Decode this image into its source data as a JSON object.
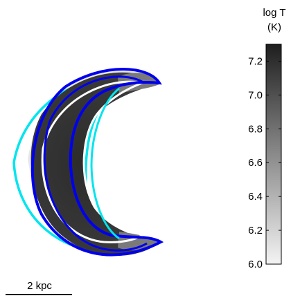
{
  "figure": {
    "colorbar": {
      "title_line1": "log T",
      "title_line2": "(K)",
      "ticks": [
        "7.2",
        "7.0",
        "6.8",
        "6.6",
        "6.4",
        "6.2",
        "6.0"
      ],
      "tick_values": [
        7.2,
        7.0,
        6.8,
        6.6,
        6.4,
        6.2,
        6.0
      ],
      "range": [
        6.0,
        7.3
      ],
      "colormap": [
        "#f4f4f4",
        "#1e1e1e"
      ]
    },
    "scale_bar": {
      "label": "2 kpc"
    },
    "contour_colors": {
      "cyan": "#00e5ee",
      "blue": "#0000ee",
      "white": "#ffffff"
    }
  }
}
